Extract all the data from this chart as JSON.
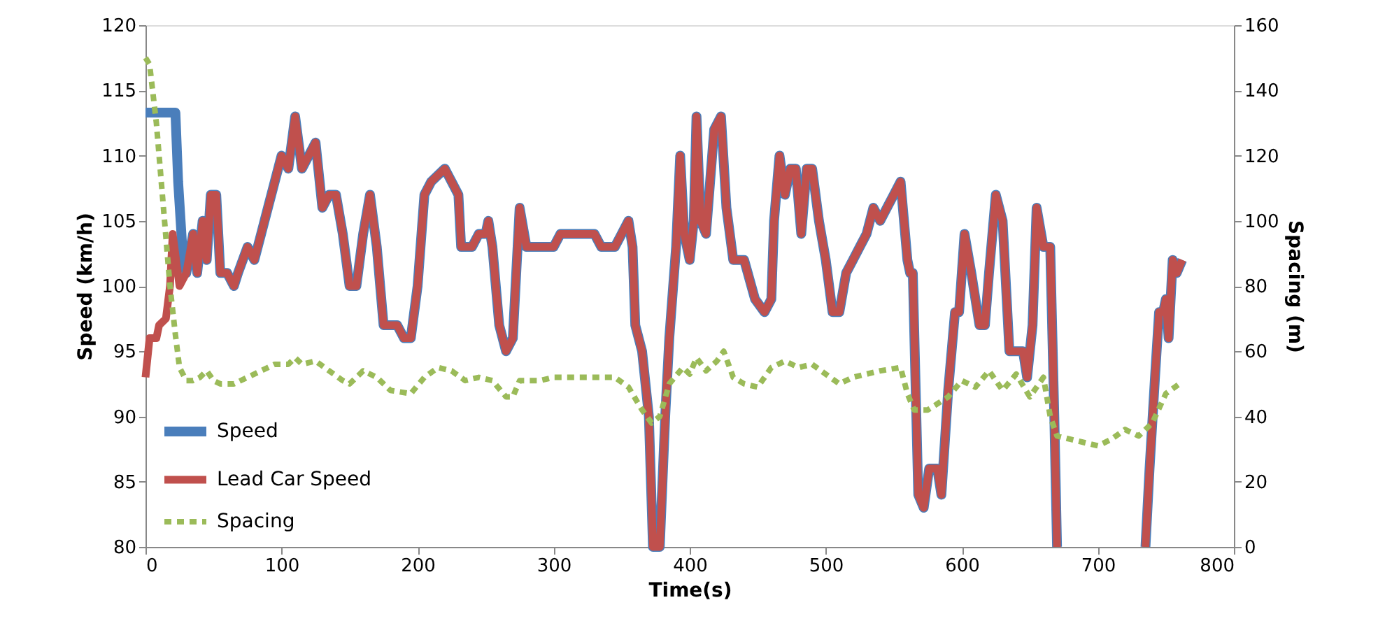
{
  "chart_data": {
    "type": "line",
    "xlabel": "Time(s)",
    "ylabel": "Speed (km/h)",
    "y2label": "Spacing (m)",
    "xlim": [
      0,
      800
    ],
    "xticks": [
      0,
      100,
      200,
      300,
      400,
      500,
      600,
      700,
      800
    ],
    "ylim": [
      80,
      120
    ],
    "yticks": [
      80,
      85,
      90,
      95,
      100,
      105,
      110,
      115,
      120
    ],
    "y2lim": [
      0,
      160
    ],
    "y2ticks": [
      0,
      20,
      40,
      60,
      80,
      100,
      120,
      140,
      160
    ],
    "grid": false,
    "legend": "bottom left",
    "marker": "none",
    "series": [
      {
        "name": "Speed",
        "color": "#4a7ebb",
        "axis": "y",
        "line_style": "solid",
        "x": [
          0,
          22,
          24,
          27,
          30,
          35,
          38,
          42,
          45,
          48,
          52,
          55,
          60,
          65,
          68,
          75,
          80,
          85,
          90,
          95,
          100,
          105,
          110,
          115,
          120,
          125,
          130,
          135,
          140,
          145,
          150,
          155,
          160,
          165,
          170,
          175,
          185,
          190,
          195,
          200,
          205,
          210,
          220,
          225,
          230,
          232,
          240,
          245,
          250,
          252,
          255,
          260,
          265,
          270,
          275,
          280,
          290,
          300,
          305,
          330,
          335,
          345,
          350,
          355,
          358,
          360,
          365,
          370,
          373,
          378,
          382,
          385,
          390,
          393,
          396,
          400,
          403,
          405,
          408,
          412,
          418,
          423,
          427,
          432,
          440,
          448,
          455,
          460,
          462,
          466,
          470,
          474,
          478,
          482,
          486,
          490,
          495,
          500,
          505,
          510,
          515,
          520,
          525,
          530,
          535,
          540,
          545,
          550,
          555,
          560,
          562,
          564,
          568,
          572,
          576,
          582,
          585,
          590,
          595,
          598,
          602,
          607,
          610,
          613,
          617,
          620,
          625,
          630,
          633,
          635,
          645,
          648,
          652,
          655,
          660,
          665,
          668,
          670,
          700,
          735,
          738,
          742,
          745,
          748,
          750,
          752,
          755,
          758,
          762
        ],
        "values": [
          113.3,
          113.3,
          108,
          103,
          101,
          104,
          101,
          105,
          102,
          107,
          107,
          101,
          101,
          100,
          101,
          103,
          102,
          104,
          106,
          108,
          110,
          109,
          113,
          109,
          110,
          111,
          106,
          107,
          107,
          104,
          100,
          100,
          104,
          107,
          103,
          97,
          97,
          96,
          96,
          100,
          107,
          108,
          109,
          108,
          107,
          103,
          103,
          104,
          104,
          105,
          103,
          97,
          95,
          96,
          106,
          103,
          103,
          103,
          104,
          104,
          103,
          103,
          104,
          105,
          103,
          97,
          95,
          90,
          80,
          80,
          90,
          96,
          103,
          110,
          104,
          102,
          105,
          113,
          105,
          104,
          112,
          113,
          106,
          102,
          102,
          99,
          98,
          99,
          105,
          110,
          107,
          109,
          109,
          104,
          109,
          109,
          105,
          102,
          98,
          98,
          101,
          102,
          103,
          104,
          106,
          105,
          106,
          107,
          108,
          102,
          101,
          101,
          84,
          83,
          86,
          86,
          84,
          92,
          98,
          98,
          104,
          101,
          99,
          97,
          97,
          101,
          107,
          105,
          99,
          95,
          95,
          93,
          97,
          106,
          103,
          103,
          90,
          80,
          null,
          80,
          86,
          93,
          98,
          98,
          99,
          96,
          102,
          101,
          102
        ]
      },
      {
        "name": "Lead Car Speed",
        "color": "#c0504d",
        "axis": "y",
        "line_style": "solid",
        "x": [
          0,
          3,
          8,
          10,
          15,
          18,
          20,
          25,
          30,
          35,
          38,
          42,
          45,
          48,
          52,
          55,
          60,
          65,
          68,
          75,
          80,
          85,
          90,
          95,
          100,
          105,
          110,
          115,
          120,
          125,
          130,
          135,
          140,
          145,
          150,
          155,
          160,
          165,
          170,
          175,
          185,
          190,
          195,
          200,
          205,
          210,
          220,
          225,
          230,
          232,
          240,
          245,
          250,
          252,
          255,
          260,
          265,
          270,
          275,
          280,
          290,
          300,
          305,
          330,
          335,
          345,
          350,
          355,
          358,
          360,
          365,
          370,
          373,
          378,
          382,
          385,
          390,
          393,
          396,
          400,
          403,
          405,
          408,
          412,
          418,
          423,
          427,
          432,
          440,
          448,
          455,
          460,
          462,
          466,
          470,
          474,
          478,
          482,
          486,
          490,
          495,
          500,
          505,
          510,
          515,
          520,
          525,
          530,
          535,
          540,
          545,
          550,
          555,
          560,
          562,
          564,
          568,
          572,
          576,
          582,
          585,
          590,
          595,
          598,
          602,
          607,
          610,
          613,
          617,
          620,
          625,
          630,
          633,
          635,
          645,
          648,
          652,
          655,
          660,
          665,
          668,
          670,
          700,
          735,
          738,
          742,
          745,
          748,
          750,
          752,
          755,
          758,
          762
        ],
        "values": [
          93,
          96,
          96,
          97,
          97.5,
          100,
          104,
          100,
          101,
          104,
          101,
          105,
          102,
          107,
          107,
          101,
          101,
          100,
          101,
          103,
          102,
          104,
          106,
          108,
          110,
          109,
          113,
          109,
          110,
          111,
          106,
          107,
          107,
          104,
          100,
          100,
          104,
          107,
          103,
          97,
          97,
          96,
          96,
          100,
          107,
          108,
          109,
          108,
          107,
          103,
          103,
          104,
          104,
          105,
          103,
          97,
          95,
          96,
          106,
          103,
          103,
          103,
          104,
          104,
          103,
          103,
          104,
          105,
          103,
          97,
          95,
          90,
          80,
          80,
          90,
          96,
          103,
          110,
          104,
          102,
          105,
          113,
          105,
          104,
          112,
          113,
          106,
          102,
          102,
          99,
          98,
          99,
          105,
          110,
          107,
          109,
          109,
          104,
          109,
          109,
          105,
          102,
          98,
          98,
          101,
          102,
          103,
          104,
          106,
          105,
          106,
          107,
          108,
          102,
          101,
          101,
          84,
          83,
          86,
          86,
          84,
          92,
          98,
          98,
          104,
          101,
          99,
          97,
          97,
          101,
          107,
          105,
          99,
          95,
          95,
          93,
          97,
          106,
          103,
          103,
          90,
          80,
          null,
          80,
          86,
          93,
          98,
          98,
          99,
          96,
          102,
          101,
          102
        ]
      },
      {
        "name": "Spacing",
        "color": "#9bbb59",
        "axis": "y2",
        "line_style": "dashed",
        "x": [
          0,
          3,
          8,
          12,
          15,
          18,
          22,
          25,
          30,
          35,
          40,
          45,
          50,
          55,
          65,
          75,
          85,
          95,
          105,
          110,
          115,
          125,
          135,
          145,
          150,
          160,
          170,
          180,
          195,
          205,
          215,
          225,
          235,
          245,
          255,
          265,
          270,
          275,
          290,
          300,
          330,
          345,
          355,
          365,
          372,
          378,
          385,
          395,
          400,
          405,
          412,
          420,
          425,
          432,
          440,
          450,
          460,
          470,
          480,
          490,
          500,
          510,
          520,
          530,
          540,
          555,
          560,
          565,
          575,
          590,
          600,
          610,
          620,
          630,
          640,
          650,
          660,
          665,
          670,
          680,
          700,
          710,
          720,
          730,
          740,
          750,
          760
        ],
        "values": [
          150,
          148,
          130,
          110,
          95,
          80,
          65,
          55,
          51,
          51,
          52,
          54,
          51,
          50,
          50,
          52,
          54,
          56,
          56,
          58,
          56,
          57,
          54,
          51,
          50,
          54,
          52,
          48,
          47,
          52,
          55,
          54,
          51,
          52,
          51,
          46,
          46,
          51,
          51,
          52,
          52,
          52,
          49,
          42,
          38,
          40,
          50,
          55,
          53,
          58,
          54,
          57,
          60,
          52,
          50,
          49,
          55,
          57,
          55,
          56,
          53,
          50,
          52,
          53,
          54,
          55,
          47,
          42,
          42,
          46,
          51,
          49,
          54,
          48,
          53,
          46,
          52,
          40,
          34,
          33,
          31,
          33,
          36,
          34,
          38,
          47,
          50
        ]
      }
    ]
  }
}
